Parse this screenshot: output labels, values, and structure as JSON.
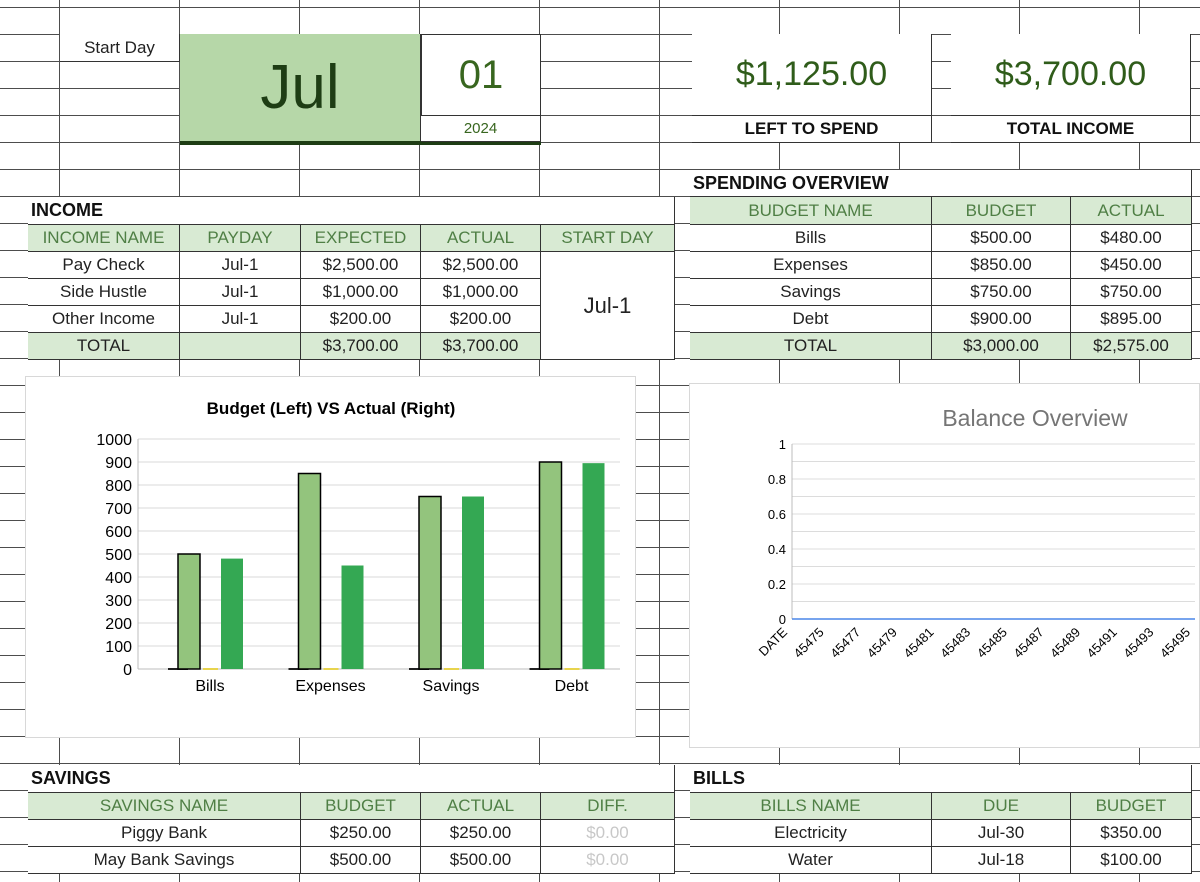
{
  "header": {
    "start_day_label": "Start Day",
    "month": "Jul",
    "day": "01",
    "year": "2024",
    "left_to_spend_value": "$1,125.00",
    "left_to_spend_label": "LEFT TO SPEND",
    "total_income_value": "$3,700.00",
    "total_income_label": "TOTAL INCOME"
  },
  "income": {
    "title": "INCOME",
    "columns": [
      "INCOME NAME",
      "PAYDAY",
      "EXPECTED",
      "ACTUAL",
      "START DAY"
    ],
    "rows": [
      {
        "name": "Pay Check",
        "payday": "Jul-1",
        "expected": "$2,500.00",
        "actual": "$2,500.00"
      },
      {
        "name": "Side Hustle",
        "payday": "Jul-1",
        "expected": "$1,000.00",
        "actual": "$1,000.00"
      },
      {
        "name": "Other Income",
        "payday": "Jul-1",
        "expected": "$200.00",
        "actual": "$200.00"
      }
    ],
    "start_day_value": "Jul-1",
    "total": {
      "label": "TOTAL",
      "expected": "$3,700.00",
      "actual": "$3,700.00"
    }
  },
  "spending": {
    "title": "SPENDING OVERVIEW",
    "columns": [
      "BUDGET NAME",
      "BUDGET",
      "ACTUAL"
    ],
    "rows": [
      {
        "name": "Bills",
        "budget": "$500.00",
        "actual": "$480.00"
      },
      {
        "name": "Expenses",
        "budget": "$850.00",
        "actual": "$450.00"
      },
      {
        "name": "Savings",
        "budget": "$750.00",
        "actual": "$750.00"
      },
      {
        "name": "Debt",
        "budget": "$900.00",
        "actual": "$895.00"
      }
    ],
    "total": {
      "label": "TOTAL",
      "budget": "$3,000.00",
      "actual": "$2,575.00"
    }
  },
  "savings": {
    "title": "SAVINGS",
    "columns": [
      "SAVINGS NAME",
      "BUDGET",
      "ACTUAL",
      "DIFF."
    ],
    "rows": [
      {
        "name": "Piggy Bank",
        "budget": "$250.00",
        "actual": "$250.00",
        "diff": "$0.00"
      },
      {
        "name": "May Bank Savings",
        "budget": "$500.00",
        "actual": "$500.00",
        "diff": "$0.00"
      }
    ]
  },
  "bills": {
    "title": "BILLS",
    "columns": [
      "BILLS NAME",
      "DUE",
      "BUDGET"
    ],
    "rows": [
      {
        "name": "Electricity",
        "due": "Jul-30",
        "budget": "$350.00"
      },
      {
        "name": "Water",
        "due": "Jul-18",
        "budget": "$100.00"
      }
    ]
  },
  "chart_data": [
    {
      "type": "bar",
      "title": "Budget (Left) VS Actual (Right)",
      "categories": [
        "Bills",
        "Expenses",
        "Savings",
        "Debt"
      ],
      "series": [
        {
          "values": [
            500,
            850,
            750,
            900
          ],
          "color": "#93c47d"
        },
        {
          "values": [
            480,
            450,
            750,
            895
          ],
          "color": "#34a853"
        }
      ],
      "yticks": [
        "0",
        "100",
        "200",
        "300",
        "400",
        "500",
        "600",
        "700",
        "800",
        "900",
        "1000"
      ],
      "ylim": [
        0,
        1000
      ],
      "grid": true,
      "legend": "none"
    },
    {
      "type": "line",
      "title": "Balance Overview",
      "x": [
        "DATE",
        "45475",
        "45477",
        "45479",
        "45481",
        "45483",
        "45485",
        "45487",
        "45489",
        "45491",
        "45493",
        "45495"
      ],
      "series": [
        {
          "values": [
            0,
            0,
            0,
            0,
            0,
            0,
            0,
            0,
            0,
            0,
            0,
            0
          ],
          "color": "#4a86e8"
        }
      ],
      "yticks": [
        "0",
        "0.2",
        "0.4",
        "0.6",
        "0.8",
        "1"
      ],
      "ylim": [
        0,
        1
      ],
      "grid": true,
      "legend": "none"
    }
  ]
}
